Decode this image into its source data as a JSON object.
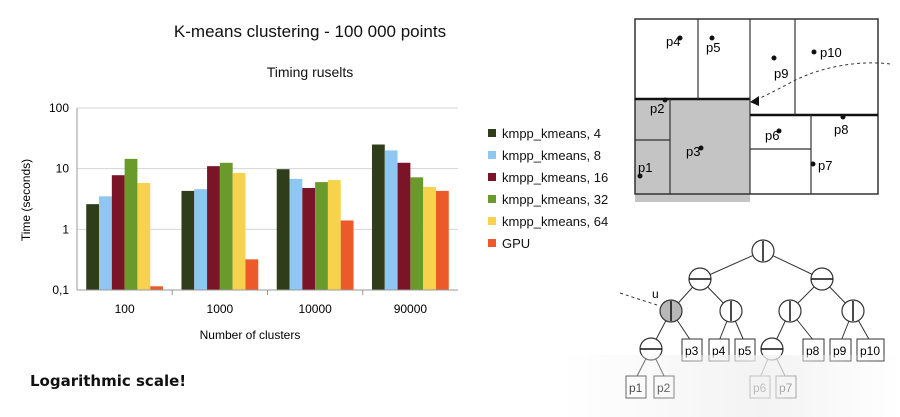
{
  "chart_data": {
    "type": "bar",
    "title": "K-means clustering - 100 000 points",
    "subtitle": "Timing ruselts",
    "xlabel": "Number of clusters",
    "ylabel": "Time (seconds)",
    "yscale": "log",
    "ylim": [
      0.1,
      100
    ],
    "yticks": [
      "100",
      "10",
      "1",
      "0,1"
    ],
    "ytick_values": [
      100,
      10,
      1,
      0.1
    ],
    "grid": true,
    "legend": "right",
    "categories": [
      "100",
      "1000",
      "10000",
      "90000"
    ],
    "series": [
      {
        "name": "kmpp_kmeans, 4",
        "color": "#2f3d1a",
        "values": [
          2.6,
          4.3,
          9.8,
          25
        ]
      },
      {
        "name": "kmpp_kmeans, 8",
        "color": "#8ec8f2",
        "values": [
          3.5,
          4.6,
          6.8,
          20
        ]
      },
      {
        "name": "kmpp_kmeans, 16",
        "color": "#7a1426",
        "values": [
          7.8,
          11,
          4.8,
          12.5
        ]
      },
      {
        "name": "kmpp_kmeans, 32",
        "color": "#6a9a2c",
        "values": [
          14.5,
          12.5,
          6.0,
          7.2
        ]
      },
      {
        "name": "kmpp_kmeans, 64",
        "color": "#f7d24c",
        "values": [
          5.8,
          8.5,
          6.5,
          5.0
        ]
      },
      {
        "name": "GPU",
        "color": "#ec5a2a",
        "values": [
          0.115,
          0.32,
          1.4,
          4.3
        ]
      }
    ]
  },
  "note": "Logarithmic scale!",
  "tree_diagram": {
    "region_labels": [
      "p4",
      "p5",
      "p9",
      "p10",
      "p2",
      "p3",
      "p1",
      "p6",
      "p8",
      "p7"
    ],
    "tree_node_label": "u",
    "leaf_labels_level3": [
      "p3",
      "p4",
      "p5",
      "p8",
      "p9",
      "p10"
    ],
    "leaf_labels_level4": [
      "p1",
      "p2",
      "p6",
      "p7"
    ]
  },
  "colors": {
    "grid": "#d6d6d6",
    "shaded": "#c4c4c4"
  }
}
